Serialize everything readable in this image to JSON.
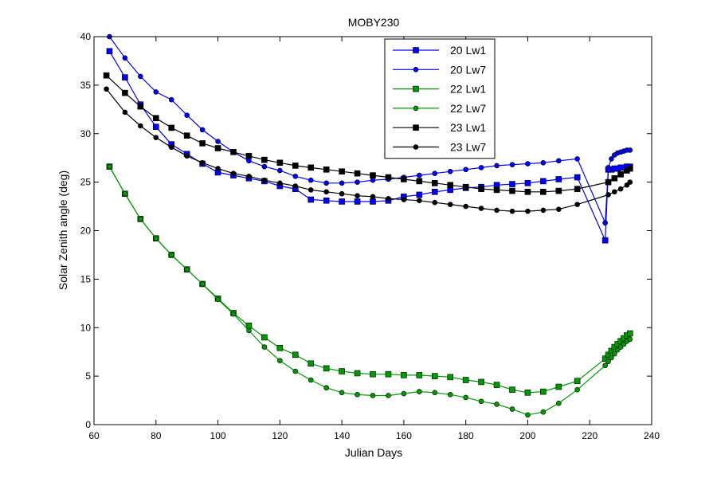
{
  "chart_data": {
    "type": "line",
    "title": "MOBY230",
    "xlabel": "Julian Days",
    "ylabel": "Solar Zenith angle (deg)",
    "xlim": [
      60,
      240
    ],
    "ylim": [
      0,
      40
    ],
    "xticks": [
      60,
      80,
      100,
      120,
      140,
      160,
      180,
      200,
      220,
      240
    ],
    "yticks": [
      0,
      5,
      10,
      15,
      20,
      25,
      30,
      35,
      40
    ],
    "grid": false,
    "legend_position": "top-center",
    "series": [
      {
        "name": "20 Lw1",
        "color": "#0000ff",
        "marker": "square",
        "x": [
          65,
          70,
          75,
          80,
          85,
          90,
          95,
          100,
          105,
          110,
          115,
          120,
          125,
          130,
          135,
          140,
          145,
          150,
          155,
          160,
          165,
          170,
          175,
          180,
          185,
          190,
          195,
          200,
          205,
          210,
          216,
          225,
          226,
          227,
          228,
          229,
          230,
          231,
          232,
          233
        ],
        "y": [
          38.5,
          35.8,
          33.0,
          30.7,
          28.9,
          27.9,
          26.9,
          26.0,
          25.7,
          25.4,
          25.1,
          24.6,
          24.3,
          23.2,
          23.1,
          23.0,
          23.0,
          23.0,
          23.1,
          23.5,
          23.7,
          24.0,
          24.2,
          24.4,
          24.5,
          24.7,
          24.8,
          24.9,
          25.1,
          25.3,
          25.5,
          19.0,
          26.3,
          26.3,
          26.4,
          26.4,
          26.5,
          26.5,
          26.6,
          26.6
        ]
      },
      {
        "name": "20 Lw7",
        "color": "#0000ff",
        "marker": "circle",
        "x": [
          65,
          70,
          75,
          80,
          85,
          90,
          95,
          100,
          105,
          110,
          115,
          120,
          125,
          130,
          135,
          140,
          145,
          150,
          155,
          160,
          165,
          170,
          175,
          180,
          185,
          190,
          195,
          200,
          205,
          210,
          216,
          225,
          226,
          227,
          228,
          229,
          230,
          231,
          232,
          233
        ],
        "y": [
          40.0,
          37.8,
          35.9,
          34.3,
          33.5,
          31.9,
          30.4,
          29.2,
          28.1,
          27.2,
          26.6,
          26.2,
          25.6,
          25.2,
          24.9,
          24.9,
          25.0,
          25.2,
          25.3,
          25.5,
          25.7,
          25.9,
          26.1,
          26.3,
          26.5,
          26.7,
          26.8,
          26.9,
          27.0,
          27.2,
          27.4,
          20.8,
          26.5,
          27.4,
          27.8,
          28.0,
          28.1,
          28.2,
          28.3,
          28.3
        ]
      },
      {
        "name": "22 Lw1",
        "color": "#009900",
        "marker": "square",
        "x": [
          65,
          70,
          75,
          80,
          85,
          90,
          95,
          100,
          105,
          110,
          115,
          120,
          125,
          130,
          135,
          140,
          145,
          150,
          155,
          160,
          165,
          170,
          175,
          180,
          185,
          190,
          195,
          200,
          205,
          210,
          216,
          225,
          226,
          227,
          228,
          229,
          230,
          231,
          232,
          233
        ],
        "y": [
          26.6,
          23.8,
          21.2,
          19.2,
          17.5,
          16.0,
          14.5,
          13.0,
          11.5,
          10.2,
          9.0,
          7.9,
          7.2,
          6.3,
          5.8,
          5.5,
          5.3,
          5.2,
          5.2,
          5.1,
          5.1,
          5.0,
          4.9,
          4.6,
          4.4,
          4.1,
          3.6,
          3.3,
          3.4,
          3.9,
          4.5,
          6.8,
          7.2,
          7.6,
          8.0,
          8.3,
          8.6,
          8.9,
          9.2,
          9.4
        ]
      },
      {
        "name": "22 Lw7",
        "color": "#009900",
        "marker": "circle",
        "x": [
          65,
          70,
          75,
          80,
          85,
          90,
          95,
          100,
          105,
          110,
          115,
          120,
          125,
          130,
          135,
          140,
          145,
          150,
          155,
          160,
          165,
          170,
          175,
          180,
          185,
          190,
          195,
          200,
          205,
          210,
          216,
          225,
          226,
          227,
          228,
          229,
          230,
          231,
          232,
          233
        ],
        "y": [
          26.6,
          23.8,
          21.2,
          19.2,
          17.5,
          16.0,
          14.5,
          12.9,
          11.4,
          9.7,
          8.0,
          6.6,
          5.5,
          4.6,
          3.8,
          3.3,
          3.1,
          3.0,
          3.0,
          3.2,
          3.4,
          3.3,
          3.1,
          2.8,
          2.4,
          2.1,
          1.6,
          1.0,
          1.3,
          2.2,
          3.6,
          6.1,
          6.5,
          6.9,
          7.3,
          7.7,
          8.0,
          8.3,
          8.6,
          8.8
        ]
      },
      {
        "name": "23 Lw1",
        "color": "#000000",
        "marker": "square",
        "x": [
          64,
          70,
          75,
          80,
          85,
          90,
          95,
          100,
          105,
          110,
          115,
          120,
          125,
          130,
          135,
          140,
          145,
          150,
          155,
          160,
          165,
          170,
          175,
          180,
          185,
          190,
          195,
          200,
          205,
          210,
          216,
          226,
          228,
          230,
          232,
          233
        ],
        "y": [
          36.0,
          34.2,
          32.8,
          31.6,
          30.6,
          29.8,
          29.0,
          28.5,
          28.1,
          27.7,
          27.3,
          27.0,
          26.7,
          26.5,
          26.3,
          26.1,
          25.9,
          25.7,
          25.5,
          25.3,
          25.1,
          24.9,
          24.7,
          24.5,
          24.3,
          24.2,
          24.1,
          24.0,
          24.0,
          24.1,
          24.3,
          25.0,
          25.4,
          25.8,
          26.2,
          26.4
        ]
      },
      {
        "name": "23 Lw7",
        "color": "#000000",
        "marker": "circle",
        "x": [
          64,
          70,
          75,
          80,
          85,
          90,
          95,
          100,
          105,
          110,
          115,
          120,
          125,
          130,
          135,
          140,
          145,
          150,
          155,
          160,
          165,
          170,
          175,
          180,
          185,
          190,
          195,
          200,
          205,
          210,
          216,
          226,
          228,
          230,
          232,
          233
        ],
        "y": [
          34.6,
          32.2,
          30.8,
          29.6,
          28.6,
          27.7,
          27.0,
          26.4,
          25.9,
          25.6,
          25.2,
          24.9,
          24.6,
          24.2,
          24.0,
          23.8,
          23.6,
          23.5,
          23.3,
          23.2,
          23.1,
          22.9,
          22.7,
          22.5,
          22.3,
          22.1,
          22.0,
          22.0,
          22.1,
          22.2,
          22.7,
          23.7,
          24.0,
          24.3,
          24.7,
          25.0
        ]
      }
    ]
  }
}
